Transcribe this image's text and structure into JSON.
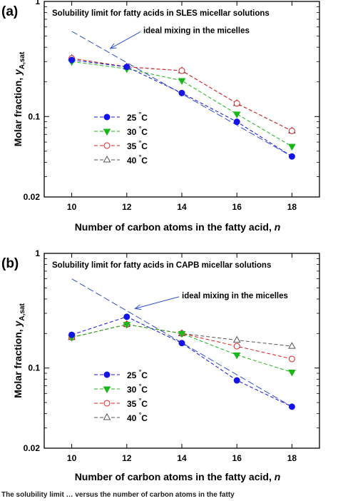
{
  "caption_fragment": "The solubility limit … versus the number of carbon atoms in the fatty",
  "chart_data": [
    {
      "type": "line",
      "panel_label": "(a)",
      "title": "Solubility limit for fatty acids in SLES micellar solutions",
      "xlabel": "Number of carbon atoms in the fatty acid,",
      "xlabel_var": "n",
      "ylabel": "Molar fraction,",
      "ylabel_var": "y",
      "ylabel_sub": "A,sat",
      "yscale": "log",
      "xlim": [
        9,
        19
      ],
      "ylim": [
        0.02,
        1
      ],
      "xticks": [
        10,
        12,
        14,
        16,
        18
      ],
      "yticks": [
        {
          "v": 0.02,
          "t": "0.02"
        },
        {
          "v": 0.1,
          "t": "0.1"
        },
        {
          "v": 1,
          "t": "1"
        }
      ],
      "x": [
        10,
        12,
        14,
        16,
        18
      ],
      "series": [
        {
          "name": "25",
          "unit": "°C",
          "color": "#1414e6",
          "marker": "circle-filled",
          "values": [
            0.31,
            0.27,
            0.16,
            0.09,
            0.045
          ]
        },
        {
          "name": "30",
          "unit": "°C",
          "color": "#18b818",
          "marker": "triangle-down-filled",
          "values": [
            0.3,
            0.26,
            0.205,
            0.105,
            0.055
          ]
        },
        {
          "name": "35",
          "unit": "°C",
          "color": "#e02020",
          "marker": "circle-open",
          "values": [
            0.32,
            0.27,
            0.25,
            0.13,
            0.075
          ]
        },
        {
          "name": "40",
          "unit": "°C",
          "color": "#555555",
          "marker": "triangle-up-open",
          "values": [
            0.32,
            0.27,
            0.25,
            0.13,
            0.075
          ]
        }
      ],
      "ideal_line": {
        "x": [
          10,
          18
        ],
        "y": [
          0.55,
          0.045
        ],
        "color": "#3050d0"
      },
      "annotation": {
        "text": "ideal mixing in the micelles",
        "text_x": 12.6,
        "text_y": 0.56,
        "arrow_to_x": 11.4,
        "arrow_to_y": 0.39
      },
      "legend_position": "bottom-left"
    },
    {
      "type": "line",
      "panel_label": "(b)",
      "title": "Solubility limit for fatty acids in CAPB micellar solutions",
      "xlabel": "Number of carbon atoms in the fatty acid,",
      "xlabel_var": "n",
      "ylabel": "Molar fraction,",
      "ylabel_var": "y",
      "ylabel_sub": "A,sat",
      "yscale": "log",
      "xlim": [
        9,
        19
      ],
      "ylim": [
        0.02,
        1
      ],
      "xticks": [
        10,
        12,
        14,
        16,
        18
      ],
      "yticks": [
        {
          "v": 0.02,
          "t": "0.02"
        },
        {
          "v": 0.1,
          "t": "0.1"
        },
        {
          "v": 1,
          "t": "1"
        }
      ],
      "x": [
        10,
        12,
        14,
        16,
        18
      ],
      "series": [
        {
          "name": "25",
          "unit": "°C",
          "color": "#1414e6",
          "marker": "circle-filled",
          "values": [
            0.195,
            0.28,
            0.165,
            0.078,
            0.046
          ]
        },
        {
          "name": "30",
          "unit": "°C",
          "color": "#18b818",
          "marker": "triangle-down-filled",
          "values": [
            0.185,
            0.24,
            0.2,
            0.13,
            0.092
          ]
        },
        {
          "name": "35",
          "unit": "°C",
          "color": "#e02020",
          "marker": "circle-open",
          "values": [
            0.185,
            0.24,
            0.2,
            0.155,
            0.12
          ]
        },
        {
          "name": "40",
          "unit": "°C",
          "color": "#555555",
          "marker": "triangle-up-open",
          "values": [
            0.185,
            0.24,
            0.2,
            0.175,
            0.155
          ]
        }
      ],
      "ideal_line": {
        "x": [
          10,
          18
        ],
        "y": [
          0.6,
          0.046
        ],
        "color": "#3050d0"
      },
      "annotation": {
        "text": "ideal mixing in the micelles",
        "text_x": 14.0,
        "text_y": 0.43,
        "arrow_to_x": 12.3,
        "arrow_to_y": 0.33
      },
      "legend_position": "bottom-left"
    }
  ]
}
